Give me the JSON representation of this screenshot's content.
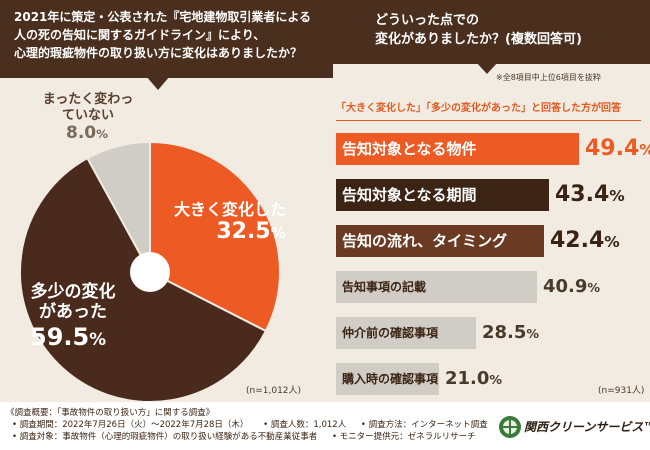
{
  "question_left": {
    "line1": "2021年に策定・公表された『宅地建物取引業者による",
    "line2": "人の死の告知に関するガイドライン』により、",
    "line3": "心理的瑕疵物件の取り扱い方に変化はありましたか？"
  },
  "question_right": {
    "line1": "どういった点での",
    "line2": "変化がありましたか？(複数回答可)"
  },
  "note_top": "※全8項目中上位6項目を抜粋",
  "subtitle": "「大きく変化した」「多少の変化があった」と回答した方が回答",
  "chart_data": [
    {
      "type": "pie",
      "title": "心理的瑕疵物件の取り扱い方に変化はありましたか？",
      "slices": [
        {
          "label": "大きく変化した",
          "value": 32.5,
          "unit": "%",
          "color": "#ee5a24"
        },
        {
          "label": "多少の変化があった",
          "value": 59.5,
          "unit": "%",
          "color": "#4a2a1c"
        },
        {
          "label": "まったく変わっていない",
          "value": 8.0,
          "unit": "%",
          "color": "#d0ccc6"
        }
      ],
      "sample": "(n=1,012人)"
    },
    {
      "type": "bar",
      "orientation": "horizontal",
      "title": "どういった点での変化がありましたか？(複数回答可)",
      "categories": [
        "告知対象となる物件",
        "告知対象となる期間",
        "告知の流れ、タイミング",
        "告知事項の記載",
        "仲介前の確認事項",
        "購入時の確認事項"
      ],
      "values": [
        49.4,
        43.4,
        42.4,
        40.9,
        28.5,
        21.0
      ],
      "unit": "%",
      "colors": [
        "#ee5a24",
        "#3b2414",
        "#6b3a22",
        "#d0ccc6",
        "#d0ccc6",
        "#d0ccc6"
      ],
      "xlim": [
        0,
        55
      ],
      "sample": "(n=931人)"
    }
  ],
  "footer": {
    "line1": "《調査概要：「事故物件の取り扱い方」に関する調査》",
    "period": "• 調査期間：2022年7月26日（火）～2022年7月28日（木）",
    "people": "• 調査人数：1,012人",
    "method": "• 調査方法：インターネット調査",
    "target": "• 調査対象：事故物件（心理的瑕疵物件）の取り扱い経験がある不動産業従事者",
    "provider": "• モニター提供元：ゼネラルリサーチ"
  },
  "logo": "関西クリーンサービス™"
}
